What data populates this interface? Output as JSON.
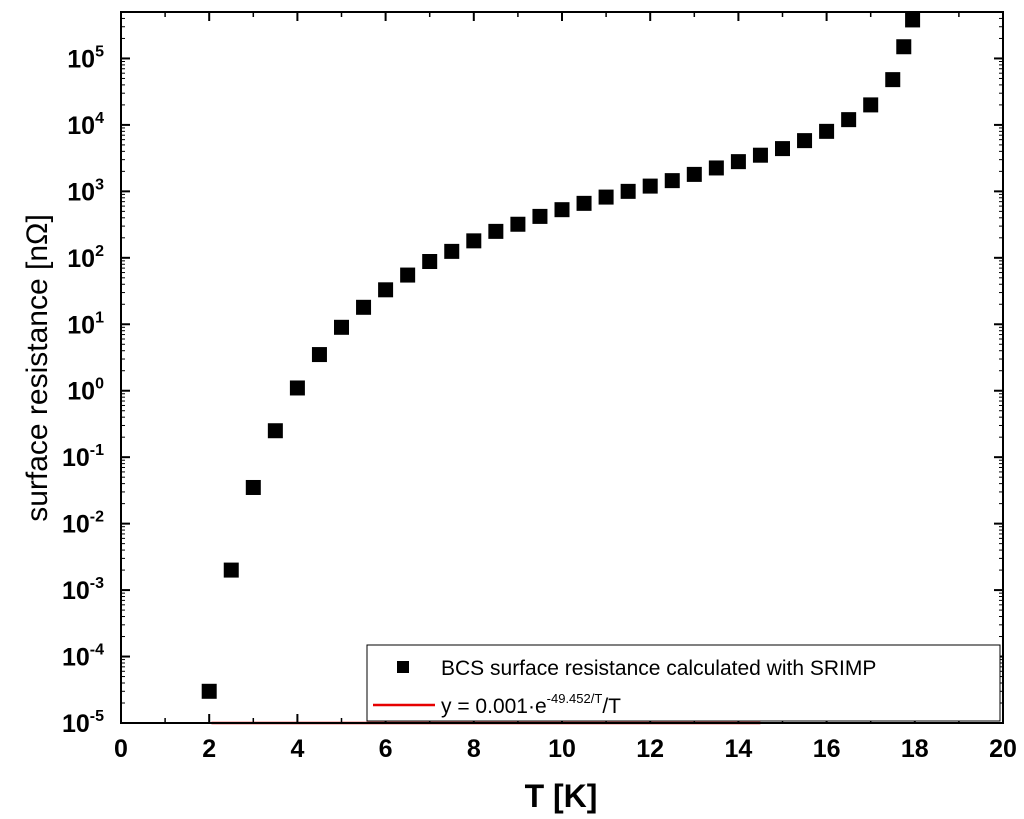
{
  "chart_data": {
    "type": "scatter",
    "title": "",
    "xlabel": "T [K]",
    "ylabel": "surface resistance [nΩ]",
    "xlim": [
      0,
      20
    ],
    "ylim": [
      1e-05,
      500000.0
    ],
    "yscale": "log",
    "x_ticks": [
      "0",
      "2",
      "4",
      "6",
      "8",
      "10",
      "12",
      "14",
      "16",
      "18",
      "20"
    ],
    "y_ticks": [
      {
        "base": "10",
        "exp": "-5"
      },
      {
        "base": "10",
        "exp": "-4"
      },
      {
        "base": "10",
        "exp": "-3"
      },
      {
        "base": "10",
        "exp": "-2"
      },
      {
        "base": "10",
        "exp": "-1"
      },
      {
        "base": "10",
        "exp": "0"
      },
      {
        "base": "10",
        "exp": "1"
      },
      {
        "base": "10",
        "exp": "2"
      },
      {
        "base": "10",
        "exp": "3"
      },
      {
        "base": "10",
        "exp": "4"
      },
      {
        "base": "10",
        "exp": "5"
      }
    ],
    "grid": false,
    "legend_position": "bottom-right",
    "series": [
      {
        "name": "BCS surface resistance calculated with SRIMP",
        "type": "scatter",
        "marker": "square",
        "color": "#000000",
        "x": [
          2.0,
          2.5,
          3.0,
          3.5,
          4.0,
          4.5,
          5.0,
          5.5,
          6.0,
          6.5,
          7.0,
          7.5,
          8.0,
          8.5,
          9.0,
          9.5,
          10.0,
          10.5,
          11.0,
          11.5,
          12.0,
          12.5,
          13.0,
          13.5,
          14.0,
          14.5,
          15.0,
          15.5,
          16.0,
          16.5,
          17.0,
          17.5,
          17.75,
          17.95
        ],
        "y": [
          3e-05,
          0.002,
          0.035,
          0.25,
          1.1,
          3.5,
          9,
          18,
          33,
          55,
          88,
          125,
          180,
          250,
          320,
          420,
          530,
          660,
          820,
          1000,
          1200,
          1450,
          1800,
          2250,
          2800,
          3500,
          4400,
          5800,
          8000,
          12000,
          20000,
          48000,
          150000,
          380000
        ]
      },
      {
        "name": "y = 0.001·e",
        "name_exp": "-49.452/T",
        "name_tail": "/T",
        "type": "line",
        "color": "#e60000",
        "formula": {
          "a": 0.001,
          "b": 49.452
        },
        "x_range": [
          2.05,
          14.5
        ]
      }
    ]
  }
}
